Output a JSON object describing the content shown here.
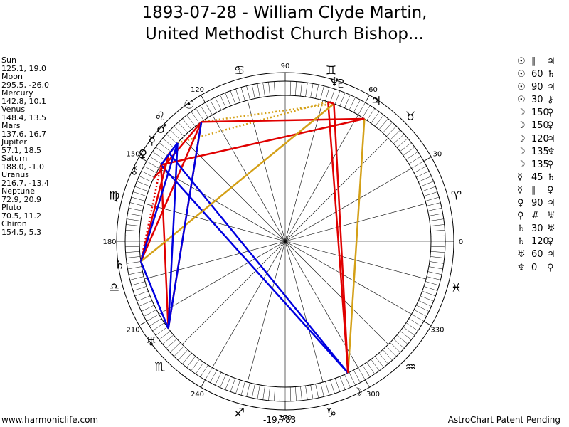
{
  "title": {
    "line1": "1893-07-28 - William Clyde Martin,",
    "line2": "United Methodist Church Bishop..."
  },
  "planets": [
    {
      "name": "Sun",
      "values": "125.1, 19.0"
    },
    {
      "name": "Moon",
      "values": "295.5, -26.0"
    },
    {
      "name": "Mercury",
      "values": "142.8, 10.1"
    },
    {
      "name": "Venus",
      "values": "148.4, 13.5"
    },
    {
      "name": "Mars",
      "values": "137.6, 16.7"
    },
    {
      "name": "Jupiter",
      "values": "57.1, 18.5"
    },
    {
      "name": "Saturn",
      "values": "188.0, -1.0"
    },
    {
      "name": "Uranus",
      "values": "216.7, -13.4"
    },
    {
      "name": "Neptune",
      "values": "72.9, 20.9"
    },
    {
      "name": "Pluto",
      "values": "70.5, 11.2"
    },
    {
      "name": "Chiron",
      "values": "154.5, 5.3"
    }
  ],
  "aspects": [
    {
      "p1": "☉",
      "aspect": "∥",
      "p2": "♃"
    },
    {
      "p1": "☉",
      "aspect": "60",
      "p2": "♄"
    },
    {
      "p1": "☉",
      "aspect": "90",
      "p2": "♃"
    },
    {
      "p1": "☉",
      "aspect": "30",
      "p2": "⚷"
    },
    {
      "p1": "☽",
      "aspect": "150",
      "p2": "♀"
    },
    {
      "p1": "☽",
      "aspect": "150",
      "p2": "♀"
    },
    {
      "p1": "☽",
      "aspect": "120",
      "p2": "♃"
    },
    {
      "p1": "☽",
      "aspect": "135",
      "p2": "♆"
    },
    {
      "p1": "☽",
      "aspect": "135",
      "p2": "♀"
    },
    {
      "p1": "☿",
      "aspect": "45",
      "p2": "♄"
    },
    {
      "p1": "☿",
      "aspect": "∥",
      "p2": "♀"
    },
    {
      "p1": "♀",
      "aspect": "90",
      "p2": "♃"
    },
    {
      "p1": "♀",
      "aspect": "#",
      "p2": "♅"
    },
    {
      "p1": "♄",
      "aspect": "30",
      "p2": "♅"
    },
    {
      "p1": "♄",
      "aspect": "120",
      "p2": "♀"
    },
    {
      "p1": "♅",
      "aspect": "60",
      "p2": "♃"
    },
    {
      "p1": "♆",
      "aspect": "0",
      "p2": "♀"
    }
  ],
  "chart": {
    "degree_labels": [
      "0",
      "30",
      "60",
      "90",
      "120",
      "150",
      "180",
      "210",
      "240",
      "270",
      "300",
      "330"
    ],
    "sign_glyphs": [
      "♈",
      "♉",
      "♊",
      "♋",
      "♌",
      "♍",
      "♎",
      "♏",
      "♐",
      "♑",
      "♒",
      "♓"
    ],
    "planet_glyphs": [
      {
        "glyph": "☉",
        "lon": 125.1,
        "color": "#000000"
      },
      {
        "glyph": "☽",
        "lon": 295.5,
        "color": "#000000"
      },
      {
        "glyph": "☿",
        "lon": 142.8,
        "color": "#000000"
      },
      {
        "glyph": "♀",
        "lon": 148.4,
        "color": "#000000"
      },
      {
        "glyph": "♂",
        "lon": 137.6,
        "color": "#000000"
      },
      {
        "glyph": "♃",
        "lon": 57.1,
        "color": "#000000"
      },
      {
        "glyph": "♄",
        "lon": 188.0,
        "color": "#000000"
      },
      {
        "glyph": "♅",
        "lon": 216.7,
        "color": "#000000"
      },
      {
        "glyph": "♆",
        "lon": 72.9,
        "color": "#000000"
      },
      {
        "glyph": "♇",
        "lon": 70.5,
        "color": "#000000"
      },
      {
        "glyph": "⚷",
        "lon": 154.5,
        "color": "#000000"
      }
    ],
    "aspect_lines": [
      {
        "from": 125.1,
        "to": 57.1,
        "color": "#e00000"
      },
      {
        "from": 125.1,
        "to": 188.0,
        "color": "#e00000"
      },
      {
        "from": 125.1,
        "to": 216.7,
        "color": "#e00000"
      },
      {
        "from": 125.1,
        "to": 154.5,
        "color": "#e00000"
      },
      {
        "from": 295.5,
        "to": 148.4,
        "color": "#0000e0"
      },
      {
        "from": 295.5,
        "to": 142.8,
        "color": "#0000e0"
      },
      {
        "from": 295.5,
        "to": 57.1,
        "color": "#d4a017"
      },
      {
        "from": 295.5,
        "to": 72.9,
        "color": "#e00000"
      },
      {
        "from": 295.5,
        "to": 70.5,
        "color": "#e00000"
      },
      {
        "from": 142.8,
        "to": 188.0,
        "color": "#e00000"
      },
      {
        "from": 148.4,
        "to": 57.1,
        "color": "#e00000"
      },
      {
        "from": 148.4,
        "to": 216.7,
        "color": "#e00000"
      },
      {
        "from": 188.0,
        "to": 216.7,
        "color": "#0000e0"
      },
      {
        "from": 188.0,
        "to": 70.5,
        "color": "#d4a017"
      },
      {
        "from": 216.7,
        "to": 125.1,
        "color": "#0000e0"
      },
      {
        "from": 216.7,
        "to": 137.6,
        "color": "#0000e0"
      },
      {
        "from": 72.9,
        "to": 70.5,
        "color": "#e00000"
      },
      {
        "from": 137.6,
        "to": 148.4,
        "color": "#0000e0"
      },
      {
        "from": 137.6,
        "to": 188.0,
        "color": "#0000e0"
      }
    ],
    "dotted_lines": [
      {
        "from": 125.1,
        "to": 70.5,
        "color": "#d4a017"
      },
      {
        "from": 137.6,
        "to": 72.9,
        "color": "#d4a017"
      },
      {
        "from": 148.4,
        "to": 188.0,
        "color": "#e00000"
      }
    ]
  },
  "footer": {
    "left": "www.harmoniclife.com",
    "center": "-19,783",
    "right": "AstroChart Patent Pending"
  }
}
